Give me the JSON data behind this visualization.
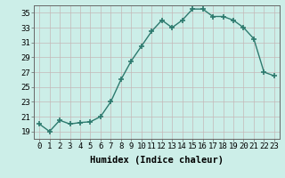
{
  "x": [
    0,
    1,
    2,
    3,
    4,
    5,
    6,
    7,
    8,
    9,
    10,
    11,
    12,
    13,
    14,
    15,
    16,
    17,
    18,
    19,
    20,
    21,
    22,
    23
  ],
  "y": [
    20.0,
    19.0,
    20.5,
    20.0,
    20.2,
    20.3,
    21.0,
    23.0,
    26.0,
    28.5,
    30.5,
    32.5,
    34.0,
    33.0,
    34.0,
    35.5,
    35.5,
    34.5,
    34.5,
    34.0,
    33.0,
    31.5,
    27.0,
    26.5
  ],
  "line_color": "#2d7a6e",
  "marker": "+",
  "marker_size": 5,
  "marker_lw": 1.2,
  "line_width": 1.0,
  "background_color": "#cceee8",
  "grid_color": "#c4b8b8",
  "xlabel": "Humidex (Indice chaleur)",
  "xlim": [
    -0.5,
    23.5
  ],
  "ylim": [
    18,
    36
  ],
  "yticks": [
    19,
    21,
    23,
    25,
    27,
    29,
    31,
    33,
    35
  ],
  "xticks": [
    0,
    1,
    2,
    3,
    4,
    5,
    6,
    7,
    8,
    9,
    10,
    11,
    12,
    13,
    14,
    15,
    16,
    17,
    18,
    19,
    20,
    21,
    22,
    23
  ],
  "xlabel_fontsize": 7.5,
  "tick_fontsize": 6.5
}
